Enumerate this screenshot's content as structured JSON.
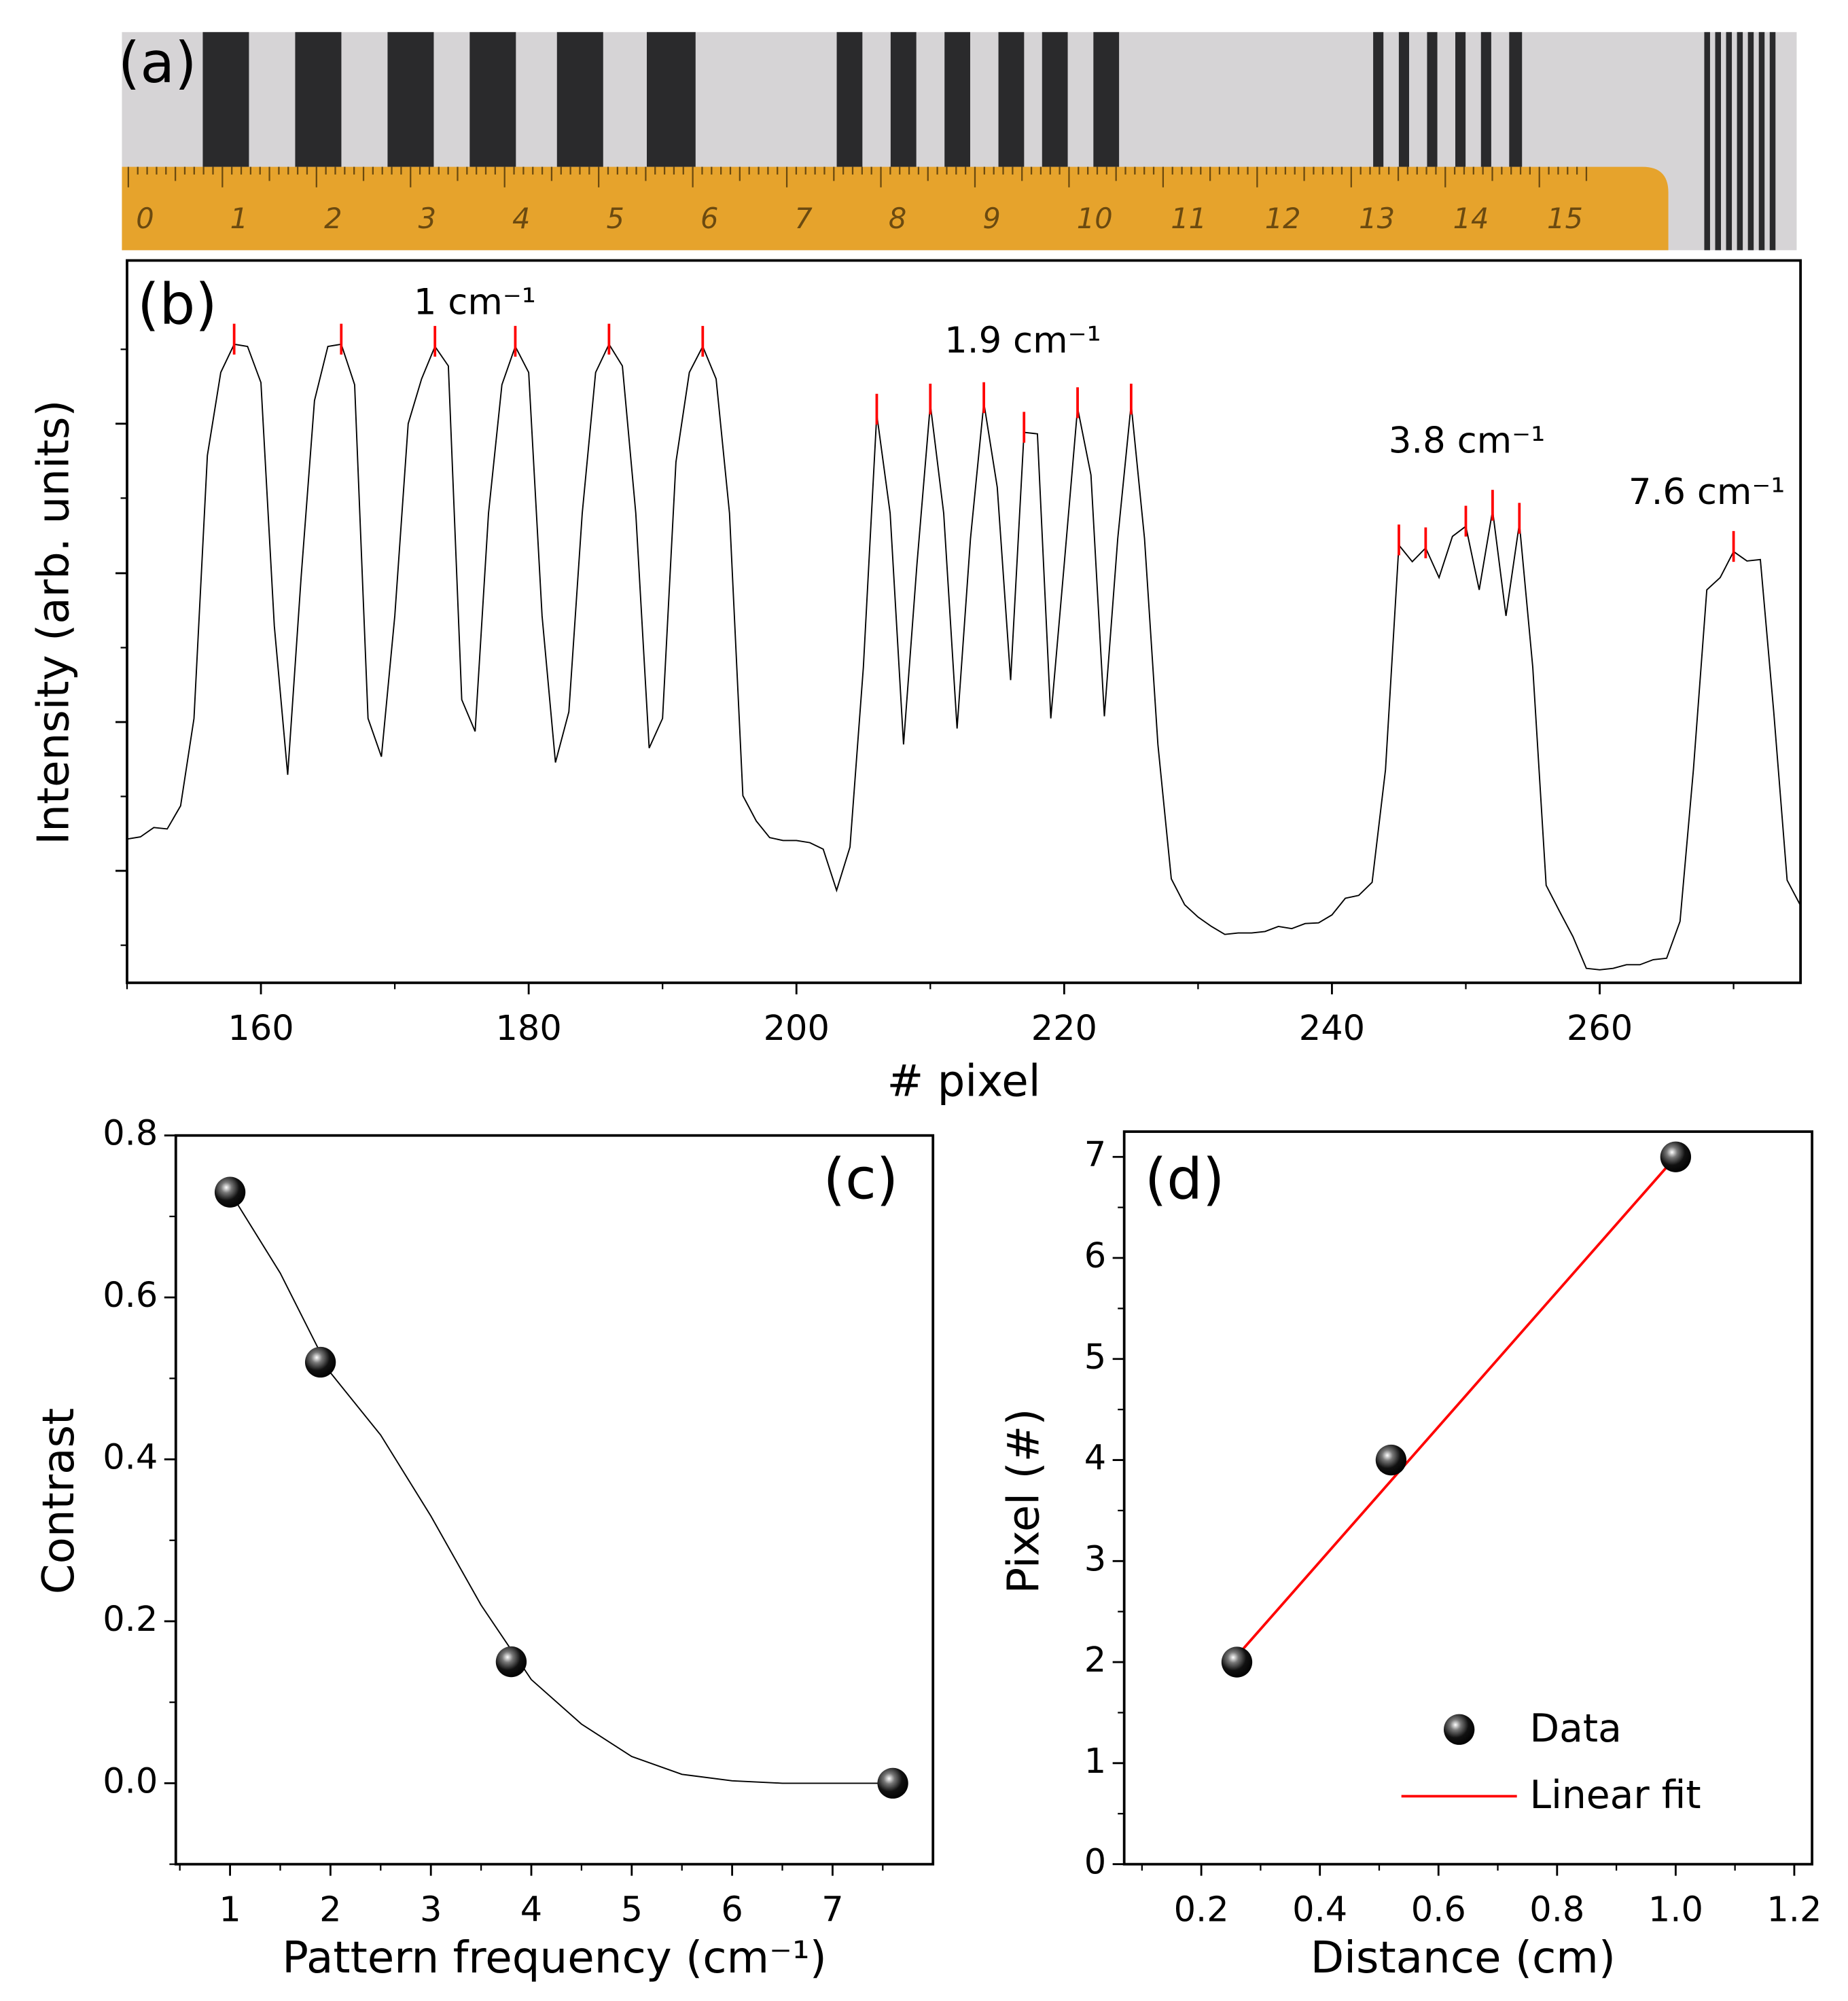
{
  "photo": {
    "label": "(a)",
    "ruler_labels": [
      "0",
      "1",
      "2",
      "3",
      "4",
      "5",
      "6",
      "7",
      "8",
      "9",
      "10",
      "11",
      "12",
      "13",
      "14",
      "15"
    ]
  },
  "chart_data": [
    {
      "type": "line",
      "label": "(b)",
      "xlabel": "# pixel",
      "ylabel": "Intensity (arb. units)",
      "x": [
        150,
        151,
        152,
        153,
        154,
        155,
        156,
        157,
        158,
        159,
        160,
        161,
        162,
        163,
        164,
        165,
        166,
        167,
        168,
        169,
        170,
        171,
        172,
        173,
        174,
        175,
        176,
        177,
        178,
        179,
        180,
        181,
        182,
        183,
        184,
        185,
        186,
        187,
        188,
        189,
        190,
        191,
        192,
        193,
        194,
        195,
        196,
        197,
        198,
        199,
        200,
        201,
        202,
        203,
        204,
        205,
        206,
        207,
        208,
        209,
        210,
        211,
        212,
        213,
        214,
        215,
        216,
        217,
        218,
        219,
        220,
        221,
        222,
        223,
        224,
        225,
        226,
        227,
        228,
        229,
        230,
        231,
        232,
        233,
        234,
        235,
        236,
        237,
        238,
        239,
        240,
        241,
        242,
        243,
        244,
        245,
        246,
        247,
        248,
        249,
        250,
        251,
        252,
        253,
        254,
        255,
        256,
        257,
        258,
        259,
        260,
        261,
        262,
        263,
        264,
        265,
        266,
        267,
        268,
        269,
        270,
        271,
        272,
        273,
        274,
        275
      ],
      "series": [
        {
          "color": "#000000",
          "values": [
            19.9,
            20.2,
            21.5,
            21.3,
            24.5,
            36.6,
            73.0,
            84.5,
            88.4,
            88.1,
            83.1,
            49.4,
            28.8,
            56.1,
            80.6,
            88.1,
            88.4,
            82.8,
            36.6,
            31.3,
            50.8,
            77.4,
            83.6,
            88.1,
            85.4,
            39.2,
            34.8,
            65.0,
            82.8,
            88.1,
            84.5,
            50.8,
            30.5,
            37.5,
            65.0,
            84.5,
            88.4,
            85.4,
            65.0,
            32.5,
            36.6,
            72.1,
            84.5,
            88.1,
            83.6,
            65.0,
            25.9,
            22.4,
            20.1,
            19.7,
            19.7,
            19.4,
            18.5,
            12.8,
            18.8,
            43.7,
            78.7,
            65.0,
            33.0,
            57.9,
            80.1,
            65.0,
            35.2,
            61.5,
            80.3,
            68.6,
            41.9,
            76.2,
            76.0,
            36.6,
            57.9,
            79.6,
            70.3,
            36.9,
            61.5,
            80.1,
            61.5,
            33.0,
            14.4,
            10.8,
            9.1,
            7.8,
            6.7,
            6.9,
            6.9,
            7.1,
            7.8,
            7.5,
            8.2,
            8.3,
            9.4,
            11.7,
            12.1,
            13.9,
            29.5,
            60.6,
            58.3,
            60.2,
            56.1,
            61.8,
            63.2,
            54.4,
            65.4,
            50.8,
            63.6,
            43.7,
            13.5,
            9.9,
            6.4,
            2.0,
            1.8,
            2.0,
            2.5,
            2.5,
            3.2,
            3.4,
            8.5,
            29.5,
            54.4,
            56.1,
            59.7,
            58.4,
            58.6,
            37.5,
            14.2,
            10.7
          ]
        }
      ],
      "peaks": {
        "color": "#ff0000",
        "x": [
          158,
          166,
          173,
          179,
          186,
          193,
          206,
          210,
          214,
          217,
          221,
          225,
          245,
          247,
          250,
          252,
          254,
          270
        ]
      },
      "annotations": [
        "1 cm⁻¹",
        "1.9 cm⁻¹",
        "3.8 cm⁻¹",
        "7.6 cm⁻¹"
      ],
      "xlim": [
        150,
        275
      ],
      "xticks": [
        160,
        180,
        200,
        220,
        240,
        260
      ],
      "xticks_minor": [
        150,
        170,
        190,
        210,
        230,
        250,
        270
      ],
      "ylim": [
        0,
        100
      ],
      "yticks": [
        15.5,
        36.1,
        56.7,
        77.4
      ],
      "yticks_minor": [
        5.2,
        25.8,
        46.4,
        67.1,
        87.7
      ],
      "ytick_labels": false
    },
    {
      "type": "scatter",
      "label": "(c)",
      "xlabel": "Pattern frequency (cm⁻¹)",
      "ylabel": "Contrast",
      "series": [
        {
          "mode": "markers",
          "x": [
            1,
            1.9,
            3.8,
            7.6
          ],
          "values": [
            0.73,
            0.52,
            0.15,
            0
          ]
        },
        {
          "mode": "lines",
          "color": "#000000",
          "x": [
            1,
            1.5,
            2,
            2.5,
            3,
            3.5,
            4,
            4.5,
            5,
            5.5,
            6,
            6.5,
            7,
            7.6
          ],
          "values": [
            0.73,
            0.63,
            0.507,
            0.43,
            0.33,
            0.22,
            0.128,
            0.073,
            0.033,
            0.011,
            0.003,
            0,
            0,
            0
          ]
        }
      ],
      "xlim": [
        0.46,
        8
      ],
      "xticks": [
        1,
        2,
        3,
        4,
        5,
        6,
        7
      ],
      "xticks_minor": [
        0.5,
        1.5,
        2.5,
        3.5,
        4.5,
        5.5,
        6.5,
        7.5
      ],
      "ylim": [
        -0.1,
        0.8
      ],
      "yticks": [
        {
          "value": 0,
          "label": "0.0"
        },
        0.2,
        0.4,
        0.6,
        0.8
      ],
      "yticks_minor": [
        -0.1,
        0.1,
        0.3,
        0.5,
        0.7
      ]
    },
    {
      "type": "scatter",
      "label": "(d)",
      "xlabel": "Distance (cm)",
      "ylabel": "Pixel (#)",
      "legend": "lower right",
      "series": [
        {
          "name": "Data",
          "mode": "markers",
          "x": [
            0.26,
            0.52,
            1.0
          ],
          "values": [
            2,
            4,
            7
          ]
        },
        {
          "name": "Linear fit",
          "mode": "lines",
          "color": "#ff0000",
          "x": [
            0.26,
            1.0
          ],
          "values": [
            2.06,
            7.0
          ]
        }
      ],
      "xlim": [
        0.07,
        1.23
      ],
      "xticks": [
        0.2,
        0.4,
        0.6,
        0.8,
        {
          "value": 1,
          "label": "1.0"
        },
        1.2
      ],
      "xticks_minor": [
        0.1,
        0.3,
        0.5,
        0.7,
        0.9,
        1.1
      ],
      "ylim": [
        0,
        7.25
      ],
      "yticks": [
        0,
        1,
        2,
        3,
        4,
        5,
        6,
        7
      ],
      "yticks_minor": [
        0.5,
        1.5,
        2.5,
        3.5,
        4.5,
        5.5,
        6.5
      ]
    }
  ]
}
